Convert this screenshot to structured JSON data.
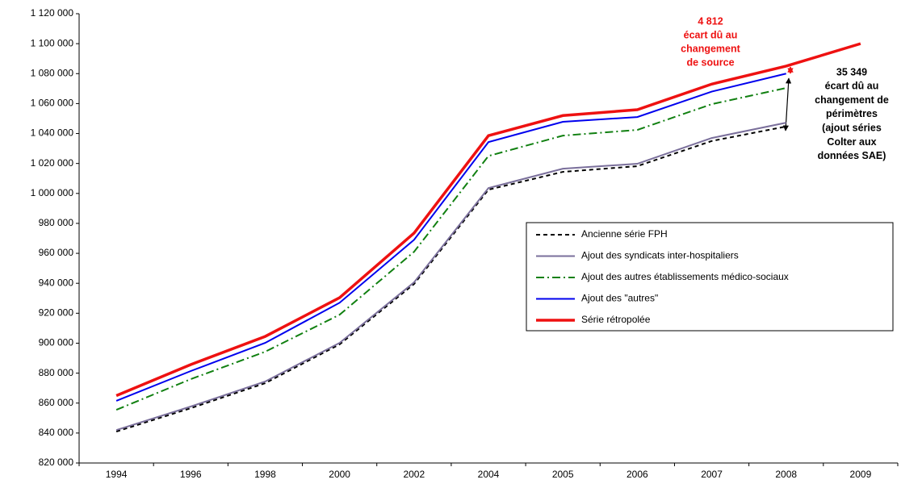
{
  "chart_data": {
    "type": "line",
    "categories": [
      "1994",
      "1996",
      "1998",
      "2000",
      "2002",
      "2004",
      "2005",
      "2006",
      "2007",
      "2008",
      "2009"
    ],
    "series": [
      {
        "name": "Ancienne série FPH",
        "color": "#000000",
        "dash": "5,4",
        "width": 2,
        "values": [
          841000,
          856600,
          873300,
          899200,
          939500,
          1002500,
          1014400,
          1018200,
          1035000,
          1044700,
          null
        ]
      },
      {
        "name": "Ajout des syndicats inter-hospitaliers",
        "color": "#7a6f9b",
        "dash": "none",
        "width": 2,
        "values": [
          842000,
          857700,
          874400,
          900200,
          940600,
          1003600,
          1016500,
          1019800,
          1037000,
          1047200,
          null
        ]
      },
      {
        "name": "Ajout des autres établissements médico-sociaux",
        "color": "#118011",
        "dash": "10,4,2,4",
        "width": 2,
        "values": [
          855500,
          876000,
          894300,
          919000,
          961000,
          1025000,
          1038600,
          1042400,
          1059600,
          1070400,
          null
        ]
      },
      {
        "name": "Ajout des \"autres\"",
        "color": "#0000ee",
        "dash": "none",
        "width": 2,
        "values": [
          861500,
          881400,
          900200,
          927000,
          969000,
          1034300,
          1047800,
          1051000,
          1068000,
          1080000,
          null
        ]
      },
      {
        "name": "Série rétropolée",
        "color": "#ee1111",
        "dash": "none",
        "width": 3.5,
        "values": [
          865000,
          885700,
          904500,
          930400,
          973500,
          1038600,
          1052000,
          1055900,
          1073000,
          1085000,
          1100000
        ]
      }
    ],
    "ylim": [
      820000,
      1120000
    ],
    "yticks": [
      {
        "value": 820000,
        "label": "820 000"
      },
      {
        "value": 840000,
        "label": "840 000"
      },
      {
        "value": 860000,
        "label": "860 000"
      },
      {
        "value": 880000,
        "label": "880 000"
      },
      {
        "value": 900000,
        "label": "900 000"
      },
      {
        "value": 920000,
        "label": "920 000"
      },
      {
        "value": 940000,
        "label": "940 000"
      },
      {
        "value": 960000,
        "label": "960 000"
      },
      {
        "value": 980000,
        "label": "980 000"
      },
      {
        "value": 1000000,
        "label": "1 000 000"
      },
      {
        "value": 1020000,
        "label": "1 020 000"
      },
      {
        "value": 1040000,
        "label": "1 040 000"
      },
      {
        "value": 1060000,
        "label": "1 060 000"
      },
      {
        "value": 1080000,
        "label": "1 080 000"
      },
      {
        "value": 1100000,
        "label": "1 100 000"
      },
      {
        "value": 1120000,
        "label": "1 120 000"
      }
    ],
    "grid": false,
    "legend": "right",
    "annotations": [
      {
        "color": "#ee1111",
        "lines": [
          "4 812",
          "écart dû au",
          "changement",
          "de source"
        ]
      },
      {
        "color": "#000000",
        "lines": [
          "35 349",
          "écart dû au",
          "changement de",
          "périmètres",
          "(ajout séries",
          "Colter aux",
          "données SAE)"
        ]
      }
    ]
  }
}
